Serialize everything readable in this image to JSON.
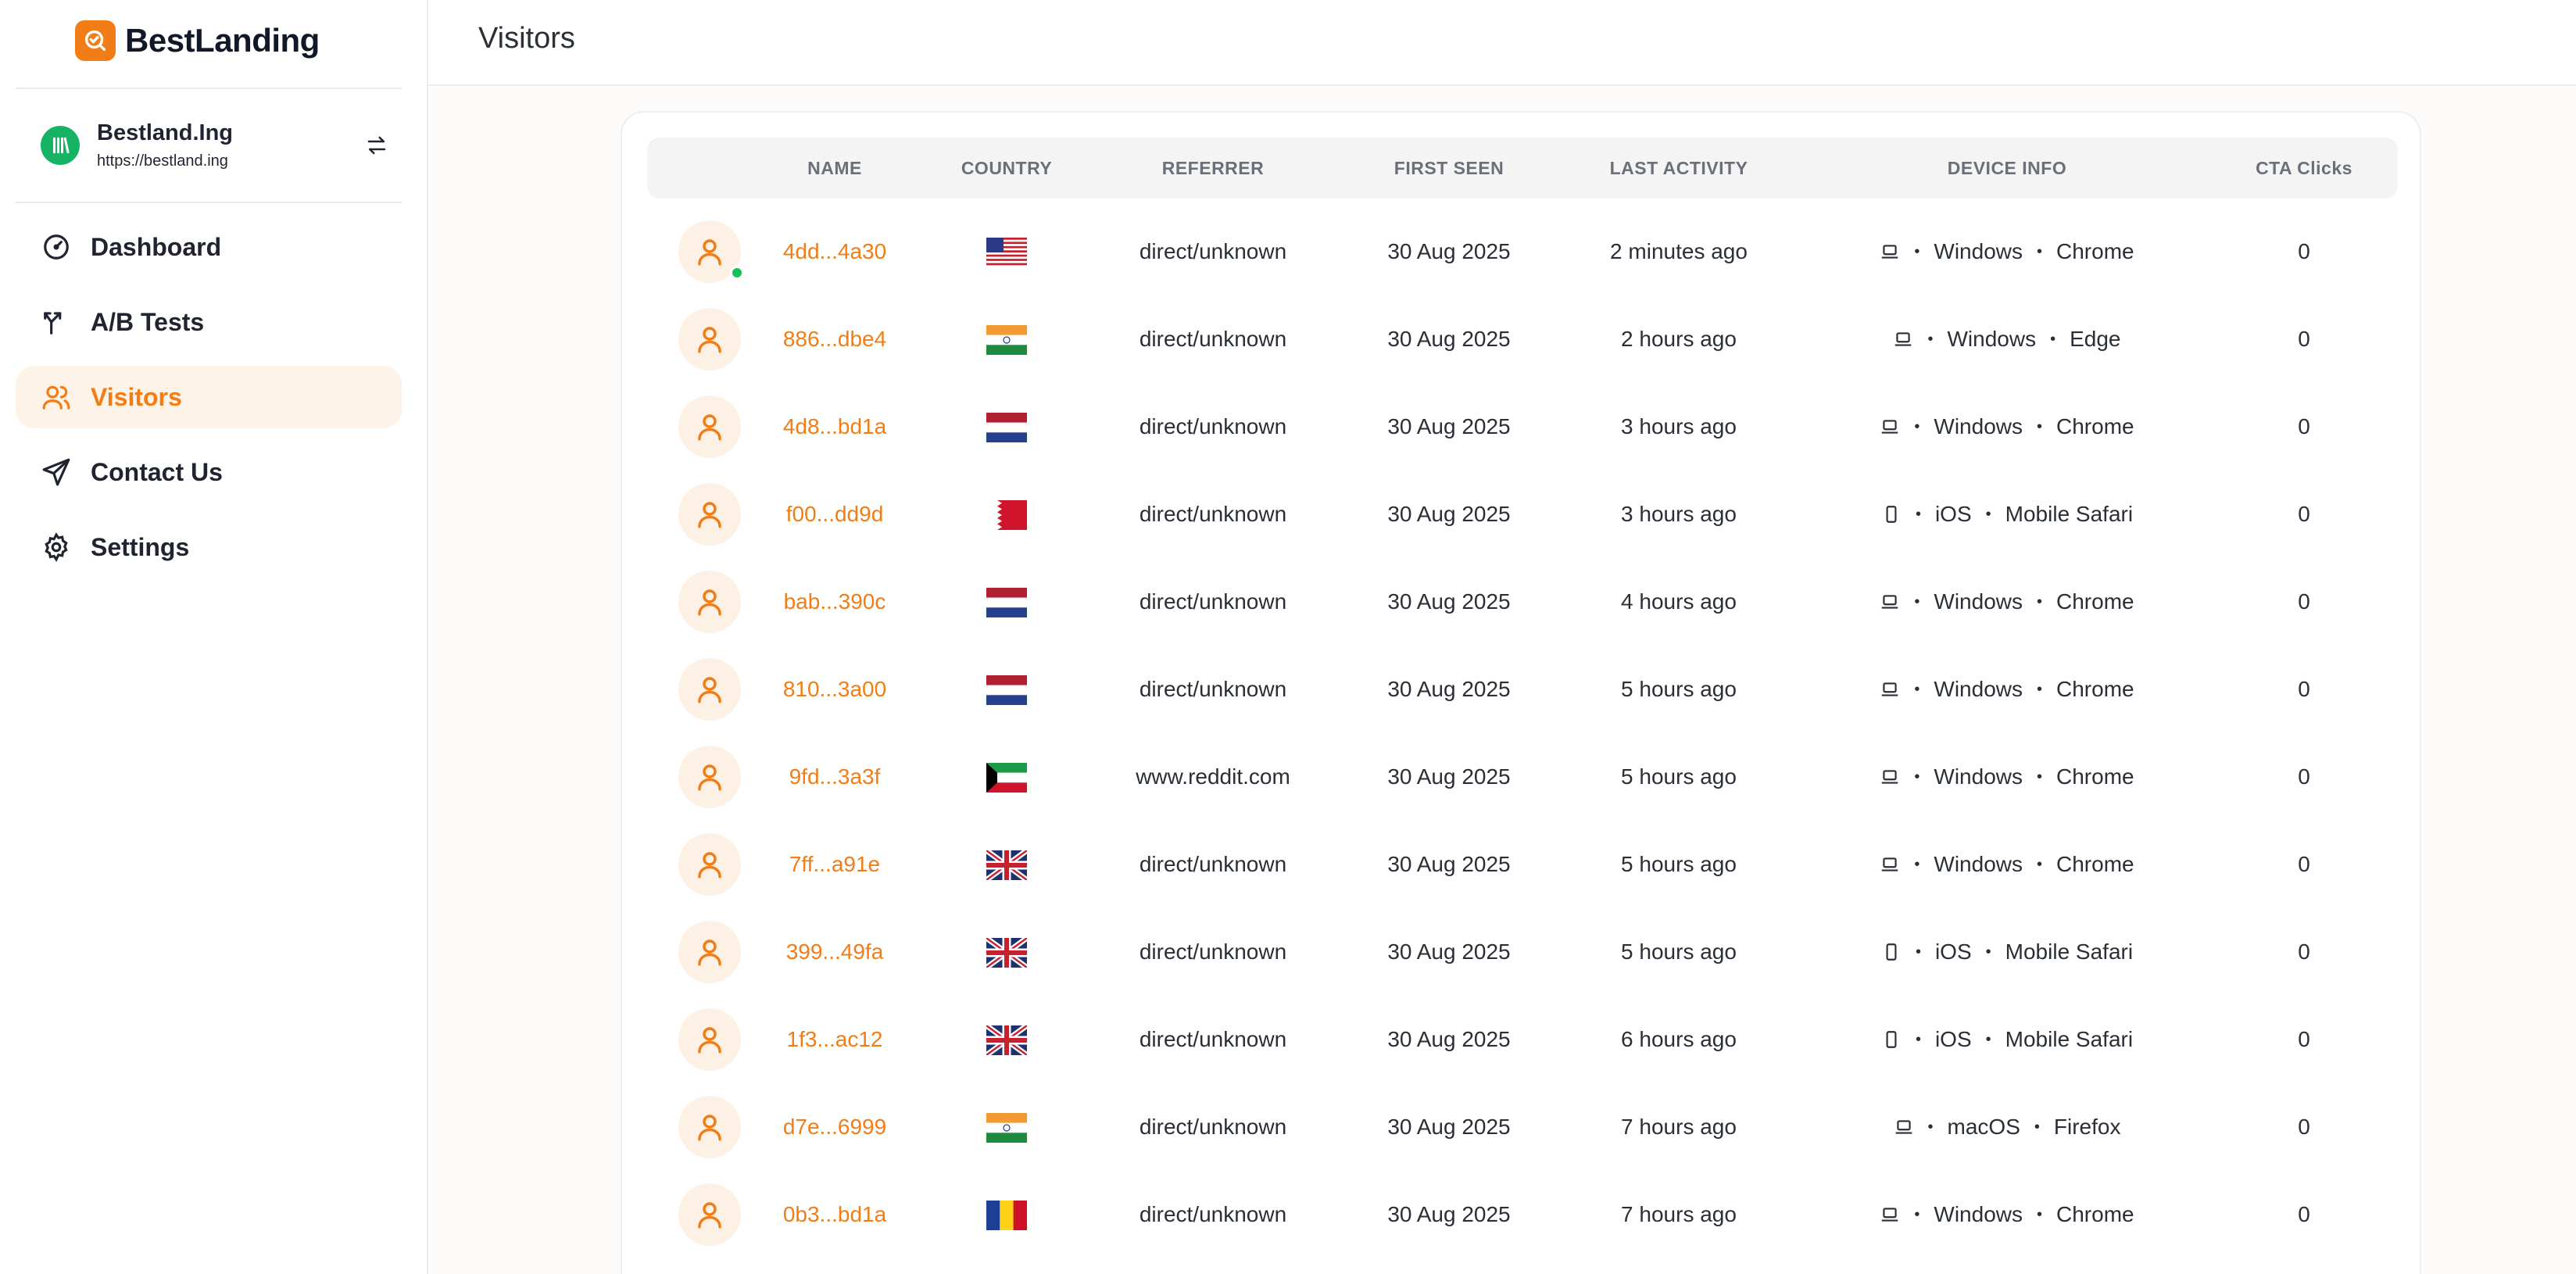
{
  "app": {
    "brand": "BestLanding",
    "site_name": "Bestland.Ing",
    "site_url": "https://bestland.ing"
  },
  "nav": [
    {
      "key": "dashboard",
      "label": "Dashboard",
      "icon": "gauge-icon",
      "active": false
    },
    {
      "key": "ab-tests",
      "label": "A/B Tests",
      "icon": "split-arrow-icon",
      "active": false
    },
    {
      "key": "visitors",
      "label": "Visitors",
      "icon": "users-icon",
      "active": true
    },
    {
      "key": "contact",
      "label": "Contact Us",
      "icon": "send-icon",
      "active": false
    },
    {
      "key": "settings",
      "label": "Settings",
      "icon": "gear-icon",
      "active": false
    }
  ],
  "page": {
    "title": "Visitors"
  },
  "colors": {
    "accent": "#f27d16",
    "accent_bg": "#fef3e8",
    "online": "#16c05c"
  },
  "table": {
    "columns": [
      "NAME",
      "COUNTRY",
      "REFERRER",
      "FIRST SEEN",
      "LAST ACTIVITY",
      "DEVICE INFO",
      "CTA Clicks"
    ],
    "rows": [
      {
        "name": "4dd...4a30",
        "country": "us",
        "referrer": "direct/unknown",
        "first_seen": "30 Aug 2025",
        "last_activity": "2 minutes ago",
        "device": "laptop-icon",
        "os": "Windows",
        "browser": "Chrome",
        "cta": "0",
        "online": true
      },
      {
        "name": "886...dbe4",
        "country": "in",
        "referrer": "direct/unknown",
        "first_seen": "30 Aug 2025",
        "last_activity": "2 hours ago",
        "device": "laptop-icon",
        "os": "Windows",
        "browser": "Edge",
        "cta": "0",
        "online": false
      },
      {
        "name": "4d8...bd1a",
        "country": "nl",
        "referrer": "direct/unknown",
        "first_seen": "30 Aug 2025",
        "last_activity": "3 hours ago",
        "device": "laptop-icon",
        "os": "Windows",
        "browser": "Chrome",
        "cta": "0",
        "online": false
      },
      {
        "name": "f00...dd9d",
        "country": "bh",
        "referrer": "direct/unknown",
        "first_seen": "30 Aug 2025",
        "last_activity": "3 hours ago",
        "device": "phone-icon",
        "os": "iOS",
        "browser": "Mobile Safari",
        "cta": "0",
        "online": false
      },
      {
        "name": "bab...390c",
        "country": "nl",
        "referrer": "direct/unknown",
        "first_seen": "30 Aug 2025",
        "last_activity": "4 hours ago",
        "device": "laptop-icon",
        "os": "Windows",
        "browser": "Chrome",
        "cta": "0",
        "online": false
      },
      {
        "name": "810...3a00",
        "country": "nl",
        "referrer": "direct/unknown",
        "first_seen": "30 Aug 2025",
        "last_activity": "5 hours ago",
        "device": "laptop-icon",
        "os": "Windows",
        "browser": "Chrome",
        "cta": "0",
        "online": false
      },
      {
        "name": "9fd...3a3f",
        "country": "kw",
        "referrer": "www.reddit.com",
        "first_seen": "30 Aug 2025",
        "last_activity": "5 hours ago",
        "device": "laptop-icon",
        "os": "Windows",
        "browser": "Chrome",
        "cta": "0",
        "online": false
      },
      {
        "name": "7ff...a91e",
        "country": "gb",
        "referrer": "direct/unknown",
        "first_seen": "30 Aug 2025",
        "last_activity": "5 hours ago",
        "device": "laptop-icon",
        "os": "Windows",
        "browser": "Chrome",
        "cta": "0",
        "online": false
      },
      {
        "name": "399...49fa",
        "country": "gb",
        "referrer": "direct/unknown",
        "first_seen": "30 Aug 2025",
        "last_activity": "5 hours ago",
        "device": "phone-icon",
        "os": "iOS",
        "browser": "Mobile Safari",
        "cta": "0",
        "online": false
      },
      {
        "name": "1f3...ac12",
        "country": "gb",
        "referrer": "direct/unknown",
        "first_seen": "30 Aug 2025",
        "last_activity": "6 hours ago",
        "device": "phone-icon",
        "os": "iOS",
        "browser": "Mobile Safari",
        "cta": "0",
        "online": false
      },
      {
        "name": "d7e...6999",
        "country": "in",
        "referrer": "direct/unknown",
        "first_seen": "30 Aug 2025",
        "last_activity": "7 hours ago",
        "device": "laptop-icon",
        "os": "macOS",
        "browser": "Firefox",
        "cta": "0",
        "online": false
      },
      {
        "name": "0b3...bd1a",
        "country": "ro",
        "referrer": "direct/unknown",
        "first_seen": "30 Aug 2025",
        "last_activity": "7 hours ago",
        "device": "laptop-icon",
        "os": "Windows",
        "browser": "Chrome",
        "cta": "0",
        "online": false
      }
    ]
  }
}
